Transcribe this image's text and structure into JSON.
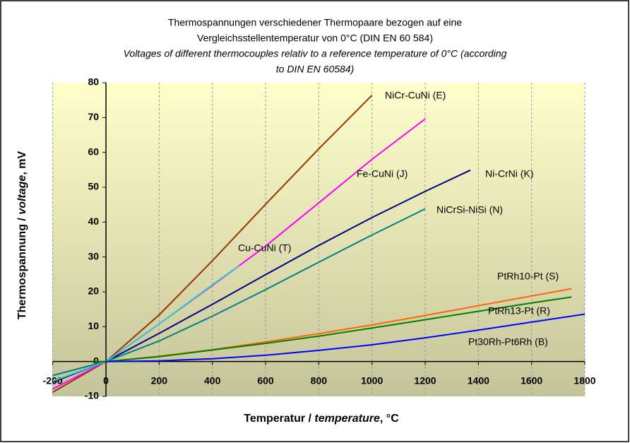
{
  "chart_data": {
    "type": "line",
    "title_lines": [
      "Thermospannungen verschiedener Thermopaare bezogen auf eine",
      "Vergleichsstellentemperatur von 0°C (DIN EN 60 584)",
      "Voltages of different thermocouples relativ to a reference temperature of 0°C (according",
      "to DIN EN 60584)"
    ],
    "x_label": [
      "Temperatur / ",
      "temperature",
      ", °C"
    ],
    "y_label": [
      "Thermospannung / ",
      "voltage",
      ", mV"
    ],
    "xlim": [
      -200,
      1800
    ],
    "ylim": [
      -10,
      80
    ],
    "xticks": [
      -200,
      0,
      200,
      400,
      600,
      800,
      1000,
      1200,
      1400,
      1600,
      1800
    ],
    "yticks": [
      -10,
      0,
      10,
      20,
      30,
      40,
      50,
      60,
      70,
      80
    ],
    "grid": true,
    "series": [
      {
        "name": "NiCr-CuNi (E)",
        "color": "#993300",
        "x": [
          -200,
          0,
          200,
          400,
          600,
          800,
          1000
        ],
        "values": [
          -8.8,
          0,
          13.4,
          28.9,
          45.1,
          61.0,
          76.4
        ]
      },
      {
        "name": "Fe-CuNi (J)",
        "color": "#ff00ff",
        "x": [
          -200,
          0,
          200,
          400,
          600,
          800,
          1000,
          1200
        ],
        "values": [
          -7.9,
          0,
          10.8,
          21.8,
          33.1,
          45.5,
          58.0,
          69.6
        ]
      },
      {
        "name": "Ni-CrNi (K)",
        "color": "#000080",
        "x": [
          -200,
          0,
          200,
          400,
          600,
          800,
          1000,
          1200,
          1370
        ],
        "values": [
          -5.9,
          0,
          8.1,
          16.4,
          24.9,
          33.3,
          41.3,
          48.8,
          54.9
        ]
      },
      {
        "name": "NiCrSi-NiSi (N)",
        "color": "#008080",
        "x": [
          -200,
          0,
          200,
          400,
          600,
          800,
          1000,
          1200
        ],
        "values": [
          -4.0,
          0,
          5.9,
          13.0,
          20.6,
          28.5,
          36.3,
          43.8
        ]
      },
      {
        "name": "Cu-CuNi (T)",
        "color": "#33cccc",
        "x": [
          -200,
          0,
          200,
          400,
          500
        ],
        "values": [
          -5.6,
          0,
          10.8,
          22.0,
          27.5
        ]
      },
      {
        "name": "PtRh10-Pt (S)",
        "color": "#ff6600",
        "x": [
          -50,
          0,
          200,
          400,
          600,
          800,
          1000,
          1200,
          1400,
          1600,
          1750
        ],
        "values": [
          -0.2,
          0,
          1.5,
          3.4,
          5.6,
          8.0,
          10.5,
          13.2,
          16.0,
          18.8,
          20.9
        ]
      },
      {
        "name": "PtRh13-Pt (R)",
        "color": "#008000",
        "x": [
          -50,
          0,
          200,
          400,
          600,
          800,
          1000,
          1200,
          1400,
          1600,
          1750
        ],
        "values": [
          -0.2,
          0,
          1.4,
          3.3,
          5.2,
          7.3,
          9.6,
          12.0,
          14.4,
          16.8,
          18.5
        ]
      },
      {
        "name": "Pt30Rh-Pt6Rh (B)",
        "color": "#0000ff",
        "x": [
          0,
          200,
          400,
          600,
          800,
          1000,
          1200,
          1400,
          1600,
          1800
        ],
        "values": [
          0,
          0.2,
          0.8,
          1.8,
          3.2,
          4.8,
          6.8,
          9.0,
          11.3,
          13.6
        ]
      }
    ]
  }
}
